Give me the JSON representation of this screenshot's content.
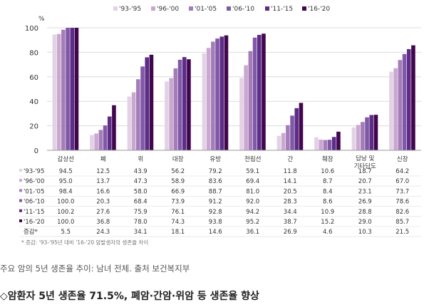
{
  "chart_data": {
    "type": "bar",
    "y_unit": "%",
    "ylim": [
      0,
      100
    ],
    "yticks": [
      "0",
      "20",
      "40",
      "60",
      "80",
      "100"
    ],
    "grid": true,
    "legend_position": "top",
    "categories": [
      "갑상선",
      "폐",
      "위",
      "대장",
      "유방",
      "전립선",
      "간",
      "췌장",
      "담낭 및 기타담도",
      "신장"
    ],
    "series": [
      {
        "name": "'93-'95",
        "color": "#e3d2e6",
        "values": [
          94.5,
          12.5,
          43.9,
          56.2,
          79.2,
          59.1,
          11.8,
          10.6,
          18.7,
          64.2
        ]
      },
      {
        "name": "'96-'00",
        "color": "#c9a8d0",
        "values": [
          95.0,
          13.7,
          47.3,
          58.9,
          83.6,
          69.4,
          14.1,
          8.7,
          20.7,
          67.0
        ]
      },
      {
        "name": "'01-'05",
        "color": "#a47db8",
        "values": [
          98.4,
          16.6,
          58.0,
          66.9,
          88.7,
          81.0,
          20.5,
          8.4,
          23.1,
          73.7
        ]
      },
      {
        "name": "'06-'10",
        "color": "#8058a8",
        "values": [
          100.0,
          20.3,
          68.4,
          73.9,
          91.2,
          92.0,
          28.3,
          8.6,
          26.9,
          78.6
        ]
      },
      {
        "name": "'11-'15",
        "color": "#5c2c86",
        "values": [
          100.2,
          27.6,
          75.9,
          76.1,
          92.8,
          94.2,
          34.4,
          10.9,
          28.8,
          82.6
        ]
      },
      {
        "name": "'16-'20",
        "color": "#42064e",
        "values": [
          100.0,
          36.8,
          78.0,
          74.3,
          93.8,
          95.2,
          38.7,
          15.2,
          29.0,
          85.7
        ]
      }
    ],
    "table_extra_row": {
      "name": "증감*",
      "values": [
        "5.5",
        "24.3",
        "34.1",
        "18.1",
        "14.6",
        "36.1",
        "26.9",
        "4.6",
        "10.3",
        "21.5"
      ]
    },
    "footnote": "* 증감: '93-'95년 대비 '16-'20 암발생자의 생존율 차이"
  },
  "caption": "주요 암의 5년 생존율 추이: 남녀 전체. 출처 보건복지부",
  "headline": "◇암환자 5년 생존율 71.5%, 폐암·간암·위암 등 생존율 향상"
}
